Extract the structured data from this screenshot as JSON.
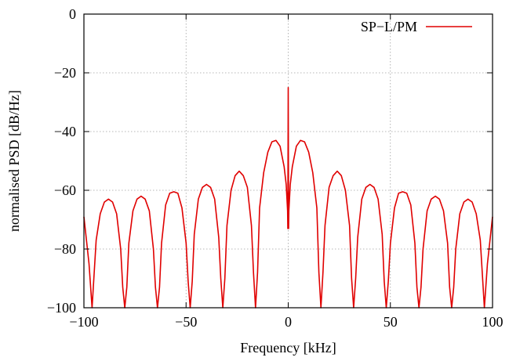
{
  "chart_data": {
    "type": "line",
    "title": "",
    "xlabel": "Frequency [kHz]",
    "ylabel": "normalised PSD [dB/Hz]",
    "xlim": [
      -100,
      100
    ],
    "ylim": [
      -100,
      0
    ],
    "xticks": [
      -100,
      -50,
      0,
      50,
      100
    ],
    "xtick_labels": [
      "−100",
      "−50",
      "0",
      "50",
      "100"
    ],
    "yticks": [
      -100,
      -80,
      -60,
      -40,
      -20,
      0
    ],
    "ytick_labels": [
      "−100",
      "−80",
      "−60",
      "−40",
      "−20",
      "0"
    ],
    "grid": true,
    "legend": {
      "position": "top-right"
    },
    "series": [
      {
        "name": "SP−L/PM",
        "color": "#e00000",
        "x": [
          -100,
          -97.5,
          -96,
          -94,
          -92,
          -90,
          -88,
          -86,
          -84,
          -82,
          -81,
          -80,
          -79,
          -78,
          -76,
          -74,
          -72,
          -70,
          -68,
          -66,
          -65,
          -64,
          -63,
          -62,
          -60,
          -58,
          -56,
          -54,
          -52,
          -50,
          -49,
          -48,
          -47,
          -46,
          -44,
          -42,
          -40,
          -38,
          -36,
          -34,
          -33,
          -32,
          -31,
          -30,
          -28,
          -26,
          -24,
          -22,
          -20,
          -18,
          -17,
          -16,
          -15,
          -14,
          -12,
          -10,
          -8,
          -6,
          -4,
          -2,
          -1,
          -0.3,
          -0.2,
          0,
          0.2,
          0.3,
          1,
          2,
          4,
          6,
          8,
          10,
          12,
          14,
          15,
          16,
          17,
          18,
          20,
          22,
          24,
          26,
          28,
          30,
          31,
          32,
          33,
          34,
          36,
          38,
          40,
          42,
          44,
          46,
          47,
          48,
          49,
          50,
          52,
          54,
          56,
          58,
          60,
          62,
          63,
          64,
          65,
          66,
          68,
          70,
          72,
          74,
          76,
          78,
          79,
          80,
          81,
          82,
          84,
          86,
          88,
          90,
          92,
          94,
          96,
          97.5,
          100
        ],
        "y": [
          -69,
          -85,
          -100,
          -77,
          -68,
          -64,
          -63,
          -64,
          -68,
          -80,
          -93,
          -100,
          -93,
          -78,
          -67,
          -63,
          -62,
          -63,
          -67,
          -80,
          -93,
          -100,
          -93,
          -78,
          -65,
          -61,
          -60.5,
          -61,
          -66,
          -78,
          -91,
          -100,
          -91,
          -75,
          -63,
          -59,
          -58,
          -59,
          -63,
          -76,
          -90,
          -100,
          -90,
          -72,
          -60,
          -55,
          -53.5,
          -55,
          -59,
          -72,
          -88,
          -100,
          -88,
          -66,
          -54,
          -47,
          -43.5,
          -43,
          -45,
          -52,
          -58,
          -67,
          -73,
          -25,
          -73,
          -67,
          -58,
          -52,
          -45,
          -43,
          -43.5,
          -47,
          -54,
          -66,
          -88,
          -100,
          -88,
          -72,
          -59,
          -55,
          -53.5,
          -55,
          -60,
          -72,
          -90,
          -100,
          -90,
          -76,
          -63,
          -59,
          -58,
          -59,
          -63,
          -75,
          -91,
          -100,
          -91,
          -78,
          -66,
          -61,
          -60.5,
          -61,
          -65,
          -78,
          -93,
          -100,
          -93,
          -80,
          -67,
          -63,
          -62,
          -63,
          -67,
          -78,
          -93,
          -100,
          -93,
          -80,
          -68,
          -64,
          -63,
          -64,
          -68,
          -77,
          -100,
          -85,
          -69
        ]
      }
    ]
  }
}
